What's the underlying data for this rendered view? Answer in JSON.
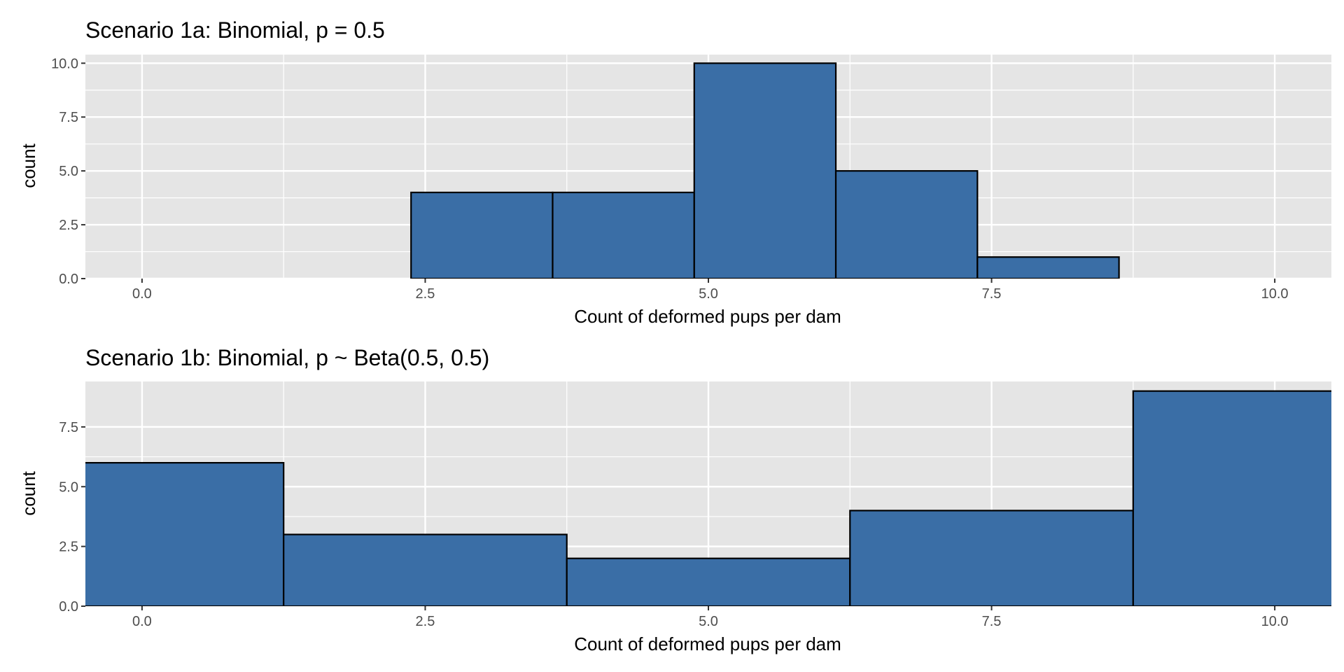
{
  "chart_data": [
    {
      "type": "bar",
      "title": "Scenario 1a: Binomial, p = 0.5",
      "xlabel": "Count of deformed pups per dam",
      "ylabel": "count",
      "xlim": [
        -0.5,
        10.5
      ],
      "ylim": [
        0,
        10.4
      ],
      "x_ticks": [
        "0.0",
        "2.5",
        "5.0",
        "7.5",
        "10.0"
      ],
      "y_ticks": [
        "0.0",
        "2.5",
        "5.0",
        "7.5",
        "10.0"
      ],
      "bins": [
        {
          "x_start": 2.375,
          "x_end": 3.625,
          "count": 4
        },
        {
          "x_start": 3.625,
          "x_end": 4.875,
          "count": 4
        },
        {
          "x_start": 4.875,
          "x_end": 6.125,
          "count": 10
        },
        {
          "x_start": 6.125,
          "x_end": 7.375,
          "count": 5
        },
        {
          "x_start": 7.375,
          "x_end": 8.625,
          "count": 1
        }
      ],
      "grid": true
    },
    {
      "type": "bar",
      "title": "Scenario 1b: Binomial, p ~ Beta(0.5, 0.5)",
      "xlabel": "Count of deformed pups per dam",
      "ylabel": "count",
      "xlim": [
        -0.5,
        10.5
      ],
      "ylim": [
        0,
        9.4
      ],
      "x_ticks": [
        "0.0",
        "2.5",
        "5.0",
        "7.5",
        "10.0"
      ],
      "y_ticks": [
        "0.0",
        "2.5",
        "5.0",
        "7.5"
      ],
      "bins": [
        {
          "x_start": -1.25,
          "x_end": 1.25,
          "count": 6
        },
        {
          "x_start": 1.25,
          "x_end": 3.75,
          "count": 3
        },
        {
          "x_start": 3.75,
          "x_end": 6.25,
          "count": 2
        },
        {
          "x_start": 6.25,
          "x_end": 8.75,
          "count": 4
        },
        {
          "x_start": 8.75,
          "x_end": 11.25,
          "count": 9
        }
      ],
      "grid": true
    }
  ],
  "colors": {
    "bar_fill": "#3A6EA6",
    "bar_stroke": "#000000",
    "panel_bg": "#E5E5E5",
    "grid": "#FFFFFF"
  }
}
